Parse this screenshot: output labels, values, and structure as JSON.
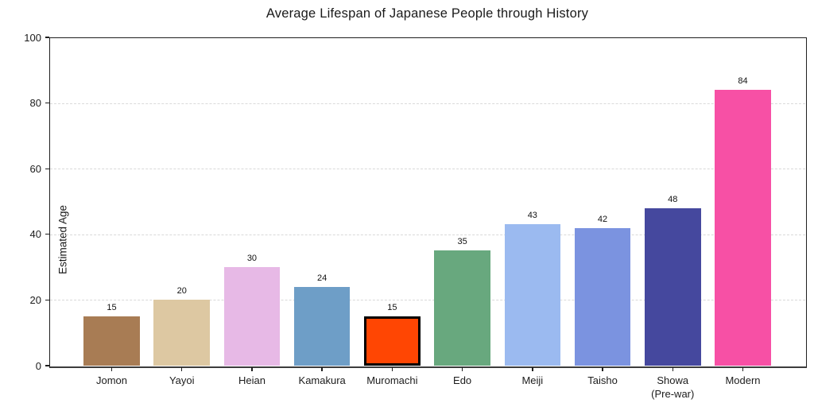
{
  "chart_data": {
    "type": "bar",
    "title": "Average Lifespan of Japanese People through History",
    "xlabel": "",
    "ylabel": "Estimated Age",
    "ylim": [
      0,
      100
    ],
    "yticks": [
      0,
      20,
      40,
      60,
      80,
      100
    ],
    "grid": "horizontal-dashed",
    "legend": "none",
    "categories": [
      "Jomon",
      "Yayoi",
      "Heian",
      "Kamakura",
      "Muromachi",
      "Edo",
      "Meiji",
      "Taisho",
      "Showa\n(Pre-war)",
      "Modern"
    ],
    "values": [
      15,
      20,
      30,
      24,
      15,
      35,
      43,
      42,
      48,
      84
    ],
    "bar_colors": [
      "#a87c54",
      "#ddc8a2",
      "#e7b9e6",
      "#6e9ec7",
      "#ff4603",
      "#68a87e",
      "#9bbaf0",
      "#7b93e0",
      "#45489e",
      "#f750a5"
    ],
    "value_labels_shown": true,
    "highlight": {
      "index": 4,
      "category": "Muromachi",
      "edge_color": "#000000",
      "edge_width": 3
    },
    "gridline_color": "#d9d9d9",
    "text_color": "#1a1a1a"
  }
}
